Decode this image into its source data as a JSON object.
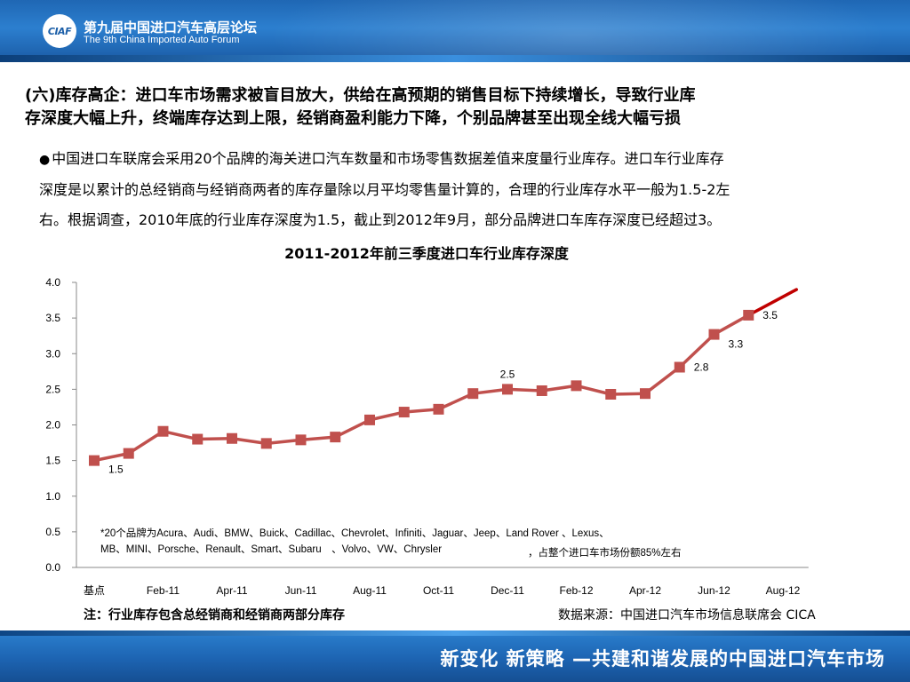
{
  "header": {
    "logo_text": "CIAF",
    "forum_cn": "第九届中国进口汽车高层论坛",
    "forum_en": "The 9th China Imported Auto Forum"
  },
  "title": {
    "line1": "(六)库存高企：进口车市场需求被盲目放大，供给在高预期的销售目标下持续增长，导致行业库",
    "line2": "存深度大幅上升，终端库存达到上限，经销商盈利能力下降，个别品牌甚至出现全线大幅亏损"
  },
  "bullet": {
    "line1": "中国进口车联席会采用20个品牌的海关进口汽车数量和市场零售数据差值来度量行业库存。进口车行业库存",
    "line2": "深度是以累计的总经销商与经销商两者的库存量除以月平均零售量计算的，合理的行业库存水平一般为1.5-2左",
    "line3": "右。根据调查，2010年底的行业库存深度为1.5，截止到2012年9月，部分品牌进口车库存深度已经超过3。"
  },
  "chart_data": {
    "type": "line",
    "title": "2011-2012年前三季度进口车行业库存深度",
    "ylim": [
      0,
      4
    ],
    "yticks": [
      "0.0",
      "0.5",
      "1.0",
      "1.5",
      "2.0",
      "2.5",
      "3.0",
      "3.5",
      "4.0"
    ],
    "xtick_labels": [
      "基点",
      "Feb-11",
      "Apr-11",
      "Jun-11",
      "Aug-11",
      "Oct-11",
      "Dec-11",
      "Feb-12",
      "Apr-12",
      "Jun-12",
      "Aug-12"
    ],
    "categories": [
      "基点",
      "Jan-11",
      "Feb-11",
      "Mar-11",
      "Apr-11",
      "May-11",
      "Jun-11",
      "Jul-11",
      "Aug-11",
      "Sep-11",
      "Oct-11",
      "Nov-11",
      "Dec-11",
      "Jan-12",
      "Feb-12",
      "Mar-12",
      "Apr-12",
      "May-12",
      "Jun-12",
      "Jul-12",
      "Aug-12"
    ],
    "values": [
      1.5,
      1.6,
      1.91,
      1.8,
      1.81,
      1.74,
      1.79,
      1.83,
      2.07,
      2.18,
      2.22,
      2.44,
      2.5,
      2.48,
      2.55,
      2.43,
      2.44,
      2.81,
      3.27,
      3.54,
      null
    ],
    "trend_extension": {
      "from": "Aug-12",
      "value_start": 3.54,
      "value_end": 3.9
    },
    "data_labels": [
      {
        "index": 0,
        "text": "1.5"
      },
      {
        "index": 12,
        "text": "2.5"
      },
      {
        "index": 17,
        "text": "2.8"
      },
      {
        "index": 18,
        "text": "3.3"
      },
      {
        "index": 19,
        "text": "3.5"
      }
    ],
    "line_color": "#c0504d",
    "trend_color": "#c00000",
    "grid": false,
    "legend": "none"
  },
  "note": {
    "brands_line1": "*20个品牌为Acura、Audi、BMW、Buick、Cadillac、Chevrolet、Infiniti、Jaguar、Jeep、Land Rover 、Lexus、",
    "brands_line2": "MB、MINI、Porsche、Renault、Smart、Subaru　、Volvo、VW、Chrysler",
    "share": "，占整个进口车市场份额85%左右"
  },
  "footnotes": {
    "left": "注：行业库存包含总经销商和经销商两部分库存",
    "right": "数据来源：中国进口汽车市场信息联席会 CICA"
  },
  "footer": {
    "slogan": "新变化  新策略 —共建和谐发展的中国进口汽车市场"
  },
  "colors": {
    "banner_blue": "#1f67b4",
    "footer_blue": "#1d64b2"
  }
}
